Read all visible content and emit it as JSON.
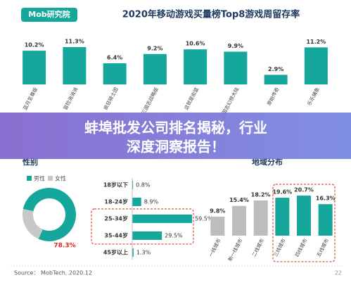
{
  "logo": "Mob研究院",
  "banner": {
    "line1": "蚌埠批发公司排名揭秘，行业",
    "line2": "深度洞察报告！"
  },
  "source": "Source： MobTech, 2020.12",
  "page": "22",
  "chart_data": [
    {
      "type": "bar",
      "title": "2020年移动游戏买量榜Top8游戏周留存率",
      "categories": [
        "蓝月至尊版",
        "冒险消消消",
        "疯狂骑士团",
        "三国志战略版",
        "这就是街篮",
        "三国志幻想大陆",
        "原始传奇",
        "乐乐捕鱼"
      ],
      "values": [
        10.2,
        11.3,
        6.4,
        9.2,
        10.6,
        9.9,
        2.9,
        11.2
      ],
      "value_labels": [
        "10.2%",
        "11.3%",
        "6.4%",
        "9.2%",
        "10.6%",
        "9.9%",
        "2.9%",
        "11.2%"
      ],
      "color": "#16a79c"
    },
    {
      "type": "pie",
      "title": "性别",
      "categories": [
        "男性",
        "女性"
      ],
      "values": [
        78.3,
        21.7
      ],
      "value_labels": [
        "78.3%",
        null
      ],
      "colors": [
        "#16a79c",
        "#c8c8c8"
      ],
      "label_color": "#e0241b"
    },
    {
      "type": "hbar",
      "categories": [
        "18岁以下",
        "18-24岁",
        "25-34岁",
        "35-44岁",
        "45岁以上"
      ],
      "values": [
        0.8,
        8.9,
        59.5,
        29.5,
        1.3
      ],
      "value_labels": [
        "0.8%",
        "8.9%",
        "59.5%",
        "29.5%",
        "1.3%"
      ],
      "color": "#16a79c"
    },
    {
      "type": "bar",
      "title": "地域分布",
      "categories": [
        "一线城市",
        "新一线城市",
        "二线城市",
        "三线城市",
        "四线城市",
        "五线城市"
      ],
      "values": [
        9.8,
        15.4,
        18.2,
        19.6,
        20.7,
        16.3
      ],
      "value_labels": [
        "9.8%",
        "15.4%",
        "18.2%",
        "19.6%",
        "20.7%",
        "16.3%"
      ],
      "colors": [
        "#bdbdbd",
        "#bdbdbd",
        "#bdbdbd",
        "#16a79c",
        "#16a79c",
        "#16a79c"
      ]
    }
  ]
}
